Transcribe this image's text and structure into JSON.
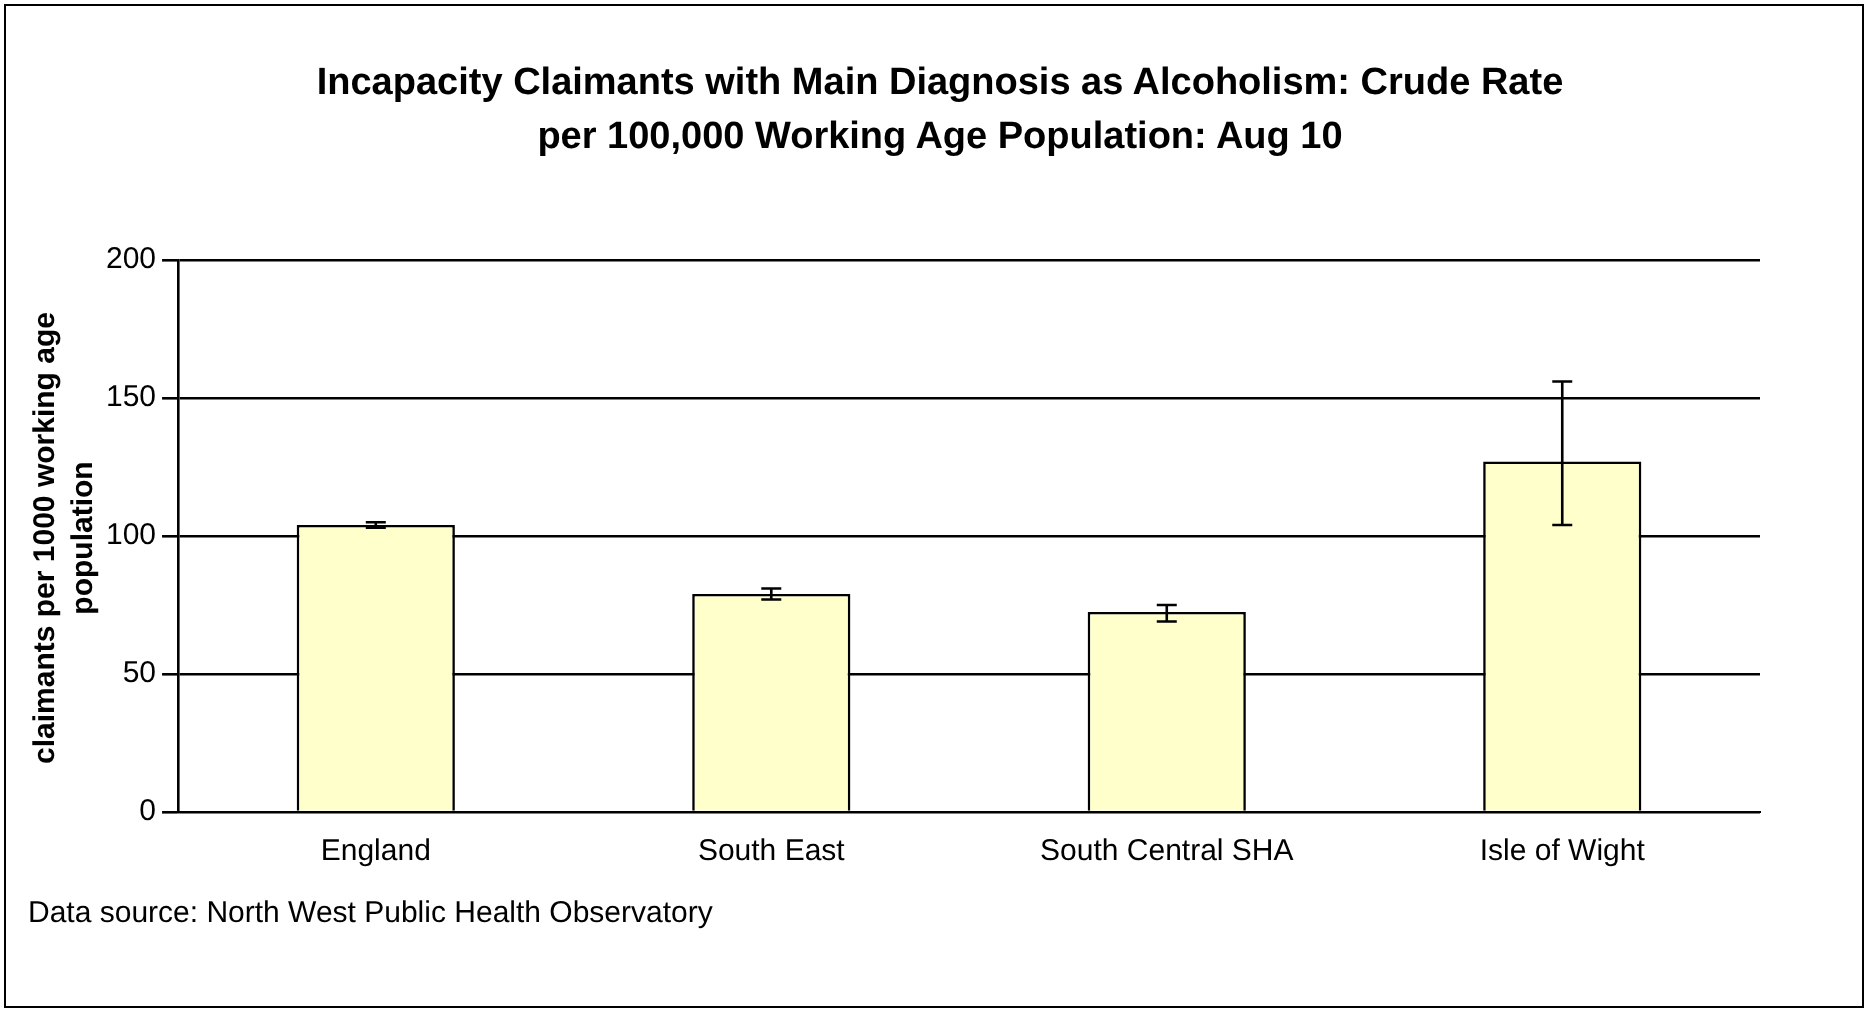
{
  "chart_data": {
    "type": "bar",
    "title": "Incapacity Claimants with Main Diagnosis as Alcoholism:  Crude Rate per 100,000 Working Age Population: Aug 10",
    "ylabel": "claimants per 1000 working age population",
    "categories": [
      "England",
      "South East",
      "South Central SHA",
      "Isle of Wight"
    ],
    "values": [
      104,
      79,
      72.5,
      127
    ],
    "errors": [
      [
        103,
        105
      ],
      [
        77,
        81
      ],
      [
        69,
        75
      ],
      [
        104,
        156
      ]
    ],
    "color": "#ffffcc",
    "ylim": [
      0,
      200
    ],
    "yticks": [
      0,
      50,
      100,
      150,
      200
    ],
    "grid": "y",
    "legend": false,
    "annotations": [
      "Data source: North West Public Health Observatory"
    ]
  }
}
